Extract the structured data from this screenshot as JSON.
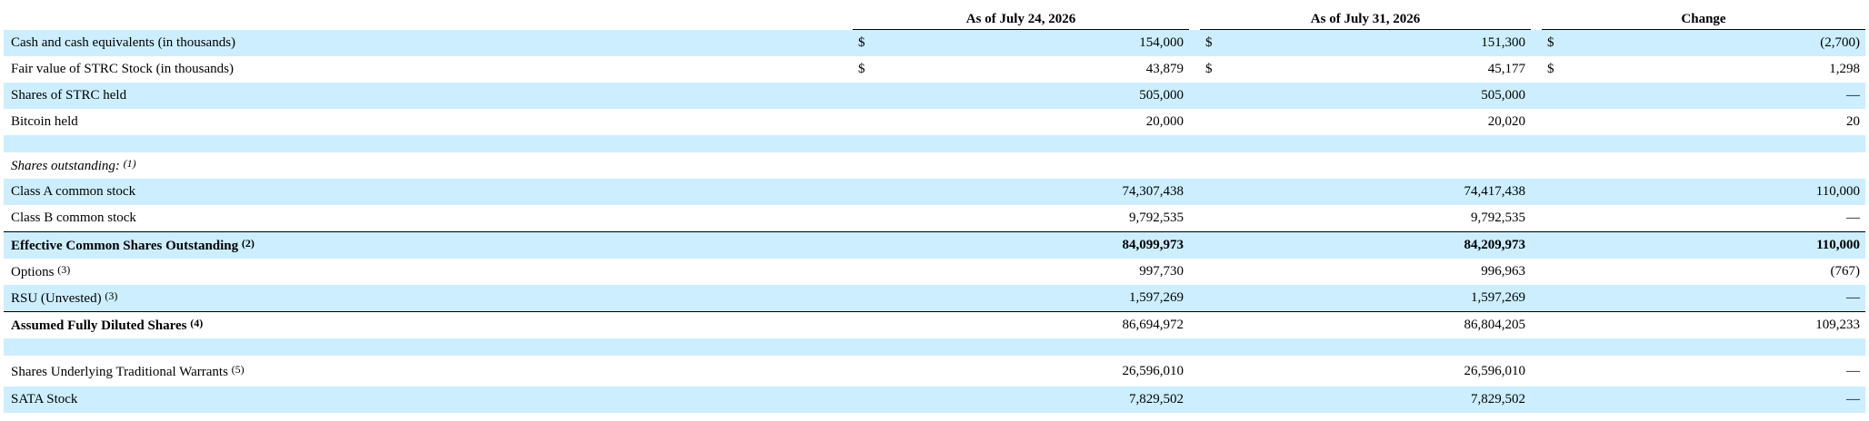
{
  "headers": {
    "col1": "As of July 24, 2026",
    "col2": "As of July 31, 2026",
    "col3": "Change"
  },
  "rows": [
    {
      "label": "Cash and cash equivalents (in thousands)",
      "note": "",
      "cur1": "$",
      "v1": "154,000",
      "cur2": "$",
      "v2": "151,300",
      "cur3": "$",
      "v3": "(2,700)"
    },
    {
      "label": "Fair value of STRC Stock (in thousands)",
      "note": "",
      "cur1": "$",
      "v1": "43,879",
      "cur2": "$",
      "v2": "45,177",
      "cur3": "$",
      "v3": "1,298"
    },
    {
      "label": "Shares of STRC held",
      "note": "",
      "cur1": "",
      "v1": "505,000",
      "cur2": "",
      "v2": "505,000",
      "cur3": "",
      "v3": "—"
    },
    {
      "label": "Bitcoin held",
      "note": "",
      "cur1": "",
      "v1": "20,000",
      "cur2": "",
      "v2": "20,020",
      "cur3": "",
      "v3": "20"
    },
    {
      "label": "",
      "note": "",
      "cur1": "",
      "v1": "",
      "cur2": "",
      "v2": "",
      "cur3": "",
      "v3": ""
    },
    {
      "label": "Shares outstanding:",
      "note": "(1)",
      "cur1": "",
      "v1": "",
      "cur2": "",
      "v2": "",
      "cur3": "",
      "v3": ""
    },
    {
      "label": "Class A common stock",
      "note": "",
      "cur1": "",
      "v1": "74,307,438",
      "cur2": "",
      "v2": "74,417,438",
      "cur3": "",
      "v3": "110,000"
    },
    {
      "label": "Class B common stock",
      "note": "",
      "cur1": "",
      "v1": "9,792,535",
      "cur2": "",
      "v2": "9,792,535",
      "cur3": "",
      "v3": "—"
    },
    {
      "label": "Effective Common Shares Outstanding",
      "note": "(2)",
      "cur1": "",
      "v1": "84,099,973",
      "cur2": "",
      "v2": "84,209,973",
      "cur3": "",
      "v3": "110,000"
    },
    {
      "label": "Options",
      "note": "(3)",
      "cur1": "",
      "v1": "997,730",
      "cur2": "",
      "v2": "996,963",
      "cur3": "",
      "v3": "(767)"
    },
    {
      "label": "RSU (Unvested)",
      "note": "(3)",
      "cur1": "",
      "v1": "1,597,269",
      "cur2": "",
      "v2": "1,597,269",
      "cur3": "",
      "v3": "—"
    },
    {
      "label": "Assumed Fully Diluted Shares",
      "note": "(4)",
      "cur1": "",
      "v1": "86,694,972",
      "cur2": "",
      "v2": "86,804,205",
      "cur3": "",
      "v3": "109,233"
    },
    {
      "label": "",
      "note": "",
      "cur1": "",
      "v1": "",
      "cur2": "",
      "v2": "",
      "cur3": "",
      "v3": ""
    },
    {
      "label": "Shares Underlying Traditional Warrants",
      "note": "(5)",
      "cur1": "",
      "v1": "26,596,010",
      "cur2": "",
      "v2": "26,596,010",
      "cur3": "",
      "v3": "—"
    },
    {
      "label": "SATA Stock",
      "note": "",
      "cur1": "",
      "v1": "7,829,502",
      "cur2": "",
      "v2": "7,829,502",
      "cur3": "",
      "v3": "—"
    }
  ],
  "colors": {
    "row_shade": "#cceeff",
    "rule": "#000000"
  }
}
